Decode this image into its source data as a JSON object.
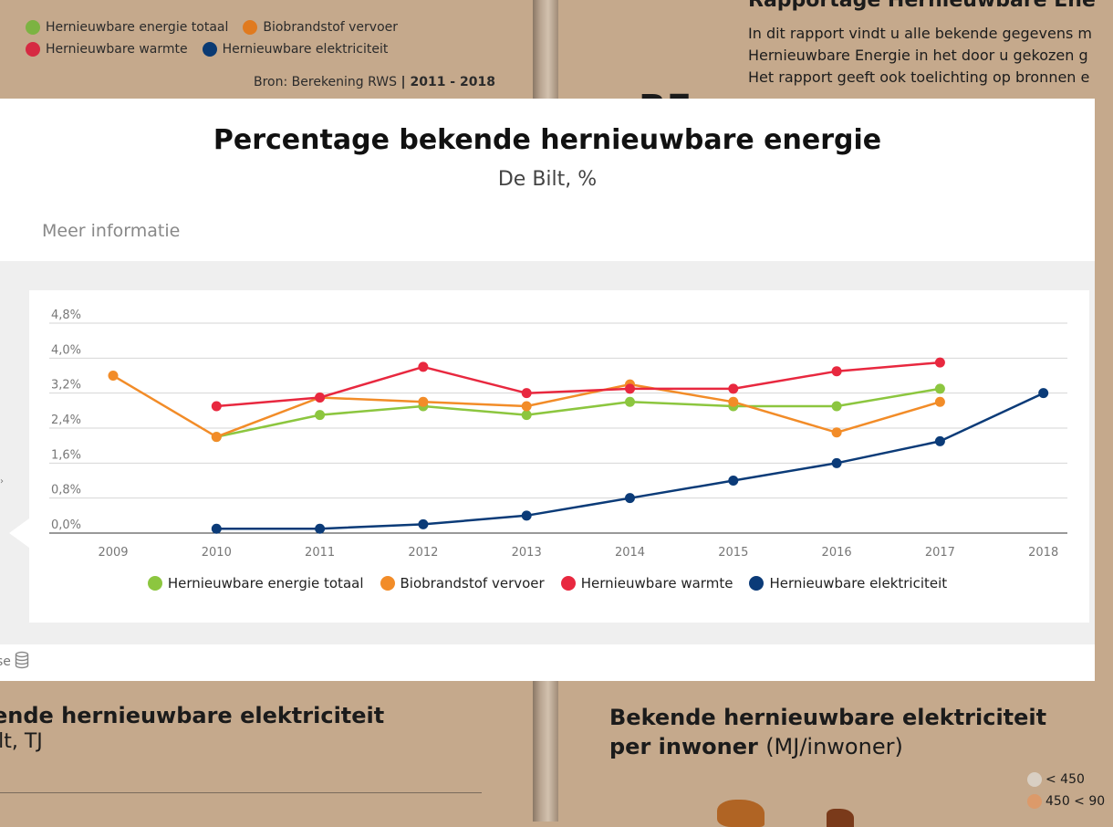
{
  "background": {
    "legend": [
      {
        "label": "Hernieuwbare energie totaal",
        "color": "#7cb342"
      },
      {
        "label": "Biobrandstof vervoer",
        "color": "#e07a1f"
      },
      {
        "label": "Hernieuwbare warmte",
        "color": "#d62a42"
      },
      {
        "label": "Hernieuwbare elektriciteit",
        "color": "#0a3a73"
      }
    ],
    "source_prefix": "Bron: Berekening RWS",
    "source_range": "| 2011 - 2018",
    "report_title": "Rapportage Hernieuwbare Ene",
    "report_lines": [
      "In dit rapport vindt u alle bekende gegevens m",
      "Hernieuwbare Energie in  het door u gekozen g",
      "Het rapport geeft ook toelichting op bronnen e"
    ],
    "big_letters": "RE",
    "bottom_left_title": "ende hernieuwbare elektriciteit",
    "bottom_left_sub": "ilt, TJ",
    "bottom_right_title": "Bekende hernieuwbare elektriciteit per inwoner",
    "bottom_right_unit": "(MJ/inwoner)",
    "map_legend": [
      {
        "label": "< 450",
        "color": "#d9cfc3"
      },
      {
        "label": "450 < 90",
        "color": "#dc9a6a"
      }
    ]
  },
  "modal": {
    "title": "Percentage bekende hernieuwbare energie",
    "subtitle": "De Bilt, %",
    "more_info": "Meer informatie",
    "footer_text": "se",
    "footer_icon": "database-icon"
  },
  "chart_data": {
    "type": "line",
    "x": [
      "2009",
      "2010",
      "2011",
      "2012",
      "2013",
      "2014",
      "2015",
      "2016",
      "2017",
      "2018"
    ],
    "y_ticks": [
      "0,0%",
      "0,8%",
      "1,6%",
      "2,4%",
      "3,2%",
      "4,0%",
      "4,8%"
    ],
    "ylim": [
      0,
      4.8
    ],
    "grid": true,
    "legend_position": "bottom",
    "series": [
      {
        "name": "Hernieuwbare energie totaal",
        "color": "#8cc63f",
        "values": [
          null,
          2.2,
          2.7,
          2.9,
          2.7,
          3.0,
          2.9,
          2.9,
          3.3,
          null
        ]
      },
      {
        "name": "Biobrandstof vervoer",
        "color": "#f28c28",
        "values": [
          3.6,
          2.2,
          3.1,
          3.0,
          2.9,
          3.4,
          3.0,
          2.3,
          3.0,
          null
        ]
      },
      {
        "name": "Hernieuwbare warmte",
        "color": "#e8283f",
        "values": [
          null,
          2.9,
          3.1,
          3.8,
          3.2,
          3.3,
          3.3,
          3.7,
          3.9,
          null
        ]
      },
      {
        "name": "Hernieuwbare elektriciteit",
        "color": "#0b3b78",
        "values": [
          null,
          0.1,
          0.1,
          0.2,
          0.4,
          0.8,
          1.2,
          1.6,
          2.1,
          3.2
        ]
      }
    ]
  }
}
